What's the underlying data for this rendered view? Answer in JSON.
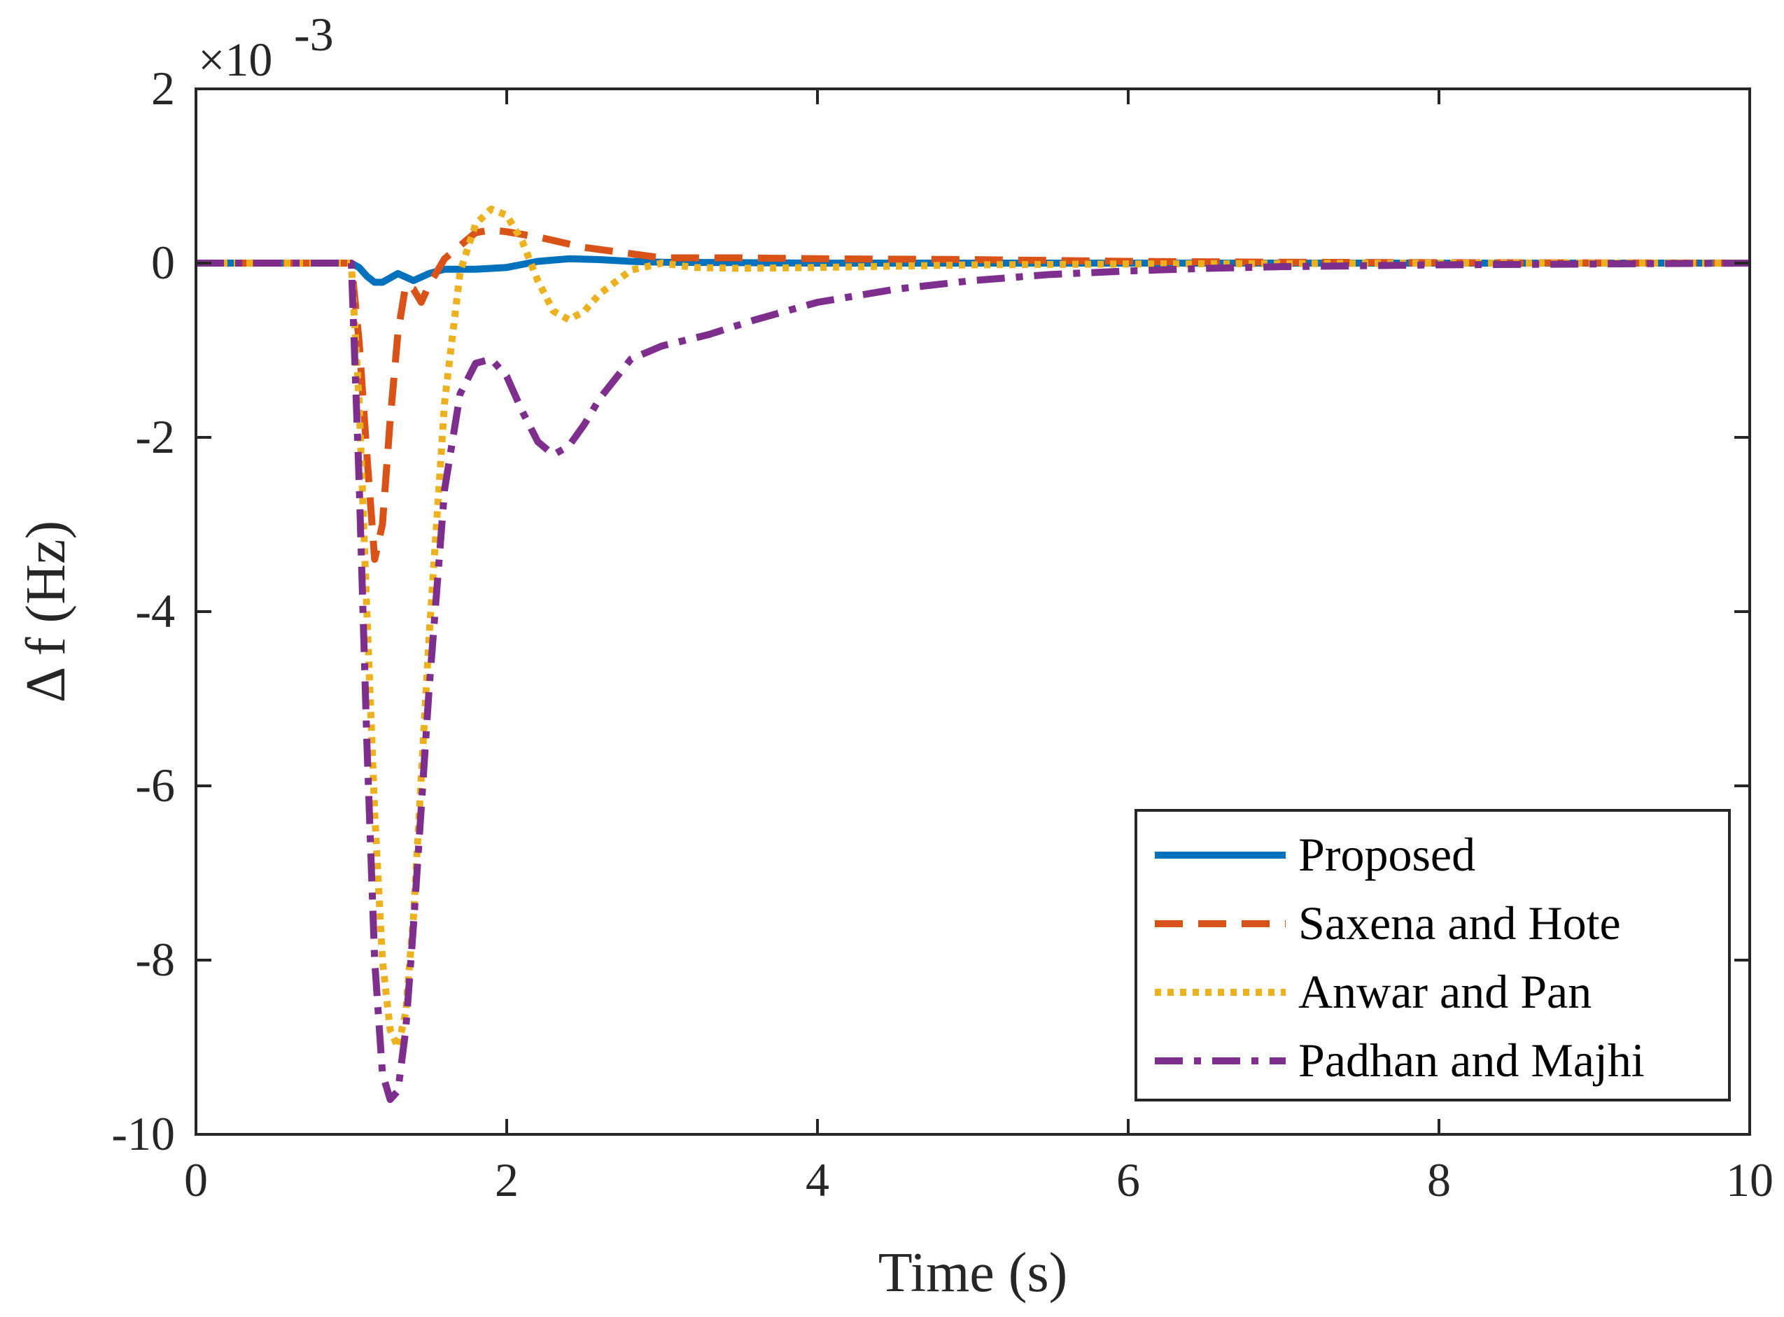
{
  "chart_data": {
    "type": "line",
    "title": "",
    "xlabel": "Time (s)",
    "ylabel": "Δ f (Hz)",
    "exponent_label": "×10",
    "exponent_power": "-3",
    "xlim": [
      0,
      10
    ],
    "ylim": [
      -10,
      2
    ],
    "xticks": [
      0,
      2,
      4,
      6,
      8,
      10
    ],
    "yticks": [
      2,
      0,
      -2,
      -4,
      -6,
      -8,
      -10
    ],
    "xtick_labels": [
      "0",
      "2",
      "4",
      "6",
      "8",
      "10"
    ],
    "ytick_labels": [
      "2",
      "0",
      "-2",
      "-4",
      "-6",
      "-8",
      "-10"
    ],
    "grid": false,
    "legend_position": "bottom-right",
    "series": [
      {
        "name": "Proposed",
        "color": "#0072BD",
        "style": "solid",
        "x": [
          0,
          1.0,
          1.05,
          1.1,
          1.15,
          1.2,
          1.3,
          1.4,
          1.5,
          1.6,
          1.8,
          2.0,
          2.2,
          2.4,
          2.6,
          2.8,
          3.0,
          4,
          6,
          8,
          10
        ],
        "y": [
          0,
          0,
          -0.05,
          -0.15,
          -0.22,
          -0.22,
          -0.12,
          -0.2,
          -0.12,
          -0.07,
          -0.07,
          -0.05,
          0.02,
          0.05,
          0.04,
          0.02,
          0.01,
          0,
          0,
          0,
          0
        ]
      },
      {
        "name": "Saxena and Hote",
        "color": "#D95319",
        "style": "dashed",
        "x": [
          0,
          1.0,
          1.05,
          1.1,
          1.15,
          1.2,
          1.25,
          1.3,
          1.35,
          1.4,
          1.45,
          1.5,
          1.6,
          1.7,
          1.8,
          1.9,
          2.0,
          2.2,
          2.5,
          3.0,
          3.5,
          4,
          5,
          6,
          7,
          8,
          10
        ],
        "y": [
          0,
          0,
          -0.9,
          -2.2,
          -3.4,
          -3.0,
          -1.8,
          -0.8,
          -0.25,
          -0.3,
          -0.45,
          -0.25,
          0.05,
          0.2,
          0.35,
          0.38,
          0.36,
          0.3,
          0.18,
          0.06,
          0.06,
          0.05,
          0.04,
          0.02,
          0.01,
          0.005,
          0
        ]
      },
      {
        "name": "Anwar and Pan",
        "color": "#EDB120",
        "style": "dotted",
        "x": [
          0,
          1.0,
          1.05,
          1.1,
          1.15,
          1.2,
          1.25,
          1.3,
          1.35,
          1.4,
          1.5,
          1.6,
          1.7,
          1.8,
          1.9,
          2.0,
          2.1,
          2.2,
          2.3,
          2.4,
          2.5,
          2.6,
          2.8,
          3.0,
          3.2,
          3.5,
          4,
          5,
          6,
          8,
          10
        ],
        "y": [
          0,
          0,
          -1.6,
          -4.0,
          -6.3,
          -8.0,
          -8.8,
          -9.0,
          -8.6,
          -7.5,
          -4.3,
          -1.6,
          -0.1,
          0.45,
          0.62,
          0.55,
          0.25,
          -0.2,
          -0.55,
          -0.65,
          -0.55,
          -0.35,
          -0.08,
          0.0,
          -0.05,
          -0.06,
          -0.05,
          -0.02,
          -0.01,
          0,
          0
        ]
      },
      {
        "name": "Padhan and Majhi",
        "color": "#7E2F8E",
        "style": "dashdot",
        "x": [
          0,
          1.0,
          1.05,
          1.1,
          1.15,
          1.2,
          1.25,
          1.3,
          1.35,
          1.4,
          1.5,
          1.6,
          1.7,
          1.8,
          1.9,
          2.0,
          2.1,
          2.2,
          2.3,
          2.4,
          2.5,
          2.6,
          2.8,
          3.0,
          3.3,
          3.6,
          4.0,
          4.5,
          5.0,
          5.5,
          6.0,
          6.5,
          7.0,
          8.0,
          9.0,
          10.0
        ],
        "y": [
          0,
          0,
          -2.5,
          -5.5,
          -8.0,
          -9.3,
          -9.6,
          -9.5,
          -8.8,
          -7.6,
          -4.9,
          -2.6,
          -1.5,
          -1.15,
          -1.1,
          -1.3,
          -1.7,
          -2.05,
          -2.2,
          -2.1,
          -1.85,
          -1.55,
          -1.1,
          -0.95,
          -0.82,
          -0.65,
          -0.45,
          -0.3,
          -0.2,
          -0.13,
          -0.09,
          -0.06,
          -0.04,
          -0.02,
          -0.01,
          0
        ]
      }
    ]
  }
}
